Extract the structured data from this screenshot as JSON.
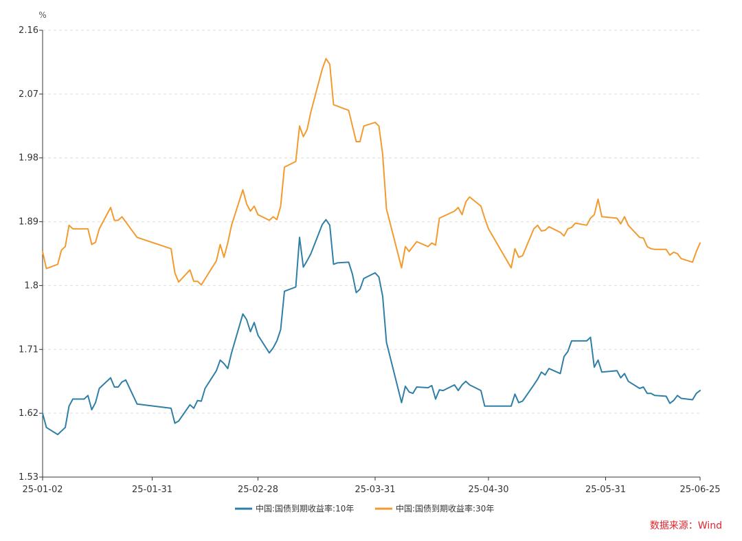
{
  "chart_data": {
    "type": "line",
    "y_unit": "%",
    "ylim": [
      1.53,
      2.16
    ],
    "y_ticks": [
      "1.53",
      "1.62",
      "1.71",
      "1.8",
      "1.89",
      "1.98",
      "2.07",
      "2.16"
    ],
    "x_ticks": [
      "25-01-02",
      "25-01-31",
      "25-02-28",
      "25-03-31",
      "25-04-30",
      "25-05-31",
      "25-06-25"
    ],
    "grid": "horizontal-dashed",
    "legend_position": "bottom-center",
    "series": [
      {
        "name": "中国:国债到期收益率:10年",
        "color": "#2e7ea6",
        "points": [
          [
            "2025-01-02",
            1.62
          ],
          [
            "2025-01-03",
            1.6
          ],
          [
            "2025-01-06",
            1.59
          ],
          [
            "2025-01-08",
            1.6
          ],
          [
            "2025-01-09",
            1.63
          ],
          [
            "2025-01-10",
            1.64
          ],
          [
            "2025-01-13",
            1.64
          ],
          [
            "2025-01-14",
            1.645
          ],
          [
            "2025-01-15",
            1.625
          ],
          [
            "2025-01-16",
            1.635
          ],
          [
            "2025-01-17",
            1.655
          ],
          [
            "2025-01-20",
            1.67
          ],
          [
            "2025-01-21",
            1.657
          ],
          [
            "2025-01-22",
            1.657
          ],
          [
            "2025-01-23",
            1.664
          ],
          [
            "2025-01-24",
            1.667
          ],
          [
            "2025-01-27",
            1.633
          ],
          [
            "2025-02-05",
            1.627
          ],
          [
            "2025-02-06",
            1.606
          ],
          [
            "2025-02-07",
            1.609
          ],
          [
            "2025-02-10",
            1.632
          ],
          [
            "2025-02-11",
            1.627
          ],
          [
            "2025-02-12",
            1.638
          ],
          [
            "2025-02-13",
            1.637
          ],
          [
            "2025-02-14",
            1.655
          ],
          [
            "2025-02-17",
            1.68
          ],
          [
            "2025-02-18",
            1.695
          ],
          [
            "2025-02-19",
            1.69
          ],
          [
            "2025-02-20",
            1.683
          ],
          [
            "2025-02-21",
            1.705
          ],
          [
            "2025-02-24",
            1.76
          ],
          [
            "2025-02-25",
            1.752
          ],
          [
            "2025-02-26",
            1.735
          ],
          [
            "2025-02-27",
            1.748
          ],
          [
            "2025-02-28",
            1.73
          ],
          [
            "2025-03-03",
            1.705
          ],
          [
            "2025-03-04",
            1.712
          ],
          [
            "2025-03-05",
            1.722
          ],
          [
            "2025-03-06",
            1.738
          ],
          [
            "2025-03-07",
            1.792
          ],
          [
            "2025-03-10",
            1.798
          ],
          [
            "2025-03-11",
            1.868
          ],
          [
            "2025-03-12",
            1.826
          ],
          [
            "2025-03-13",
            1.835
          ],
          [
            "2025-03-14",
            1.845
          ],
          [
            "2025-03-17",
            1.886
          ],
          [
            "2025-03-18",
            1.893
          ],
          [
            "2025-03-19",
            1.885
          ],
          [
            "2025-03-20",
            1.83
          ],
          [
            "2025-03-21",
            1.832
          ],
          [
            "2025-03-24",
            1.833
          ],
          [
            "2025-03-25",
            1.816
          ],
          [
            "2025-03-26",
            1.79
          ],
          [
            "2025-03-27",
            1.795
          ],
          [
            "2025-03-28",
            1.81
          ],
          [
            "2025-03-31",
            1.818
          ],
          [
            "2025-04-01",
            1.812
          ],
          [
            "2025-04-02",
            1.785
          ],
          [
            "2025-04-03",
            1.72
          ],
          [
            "2025-04-07",
            1.635
          ],
          [
            "2025-04-08",
            1.658
          ],
          [
            "2025-04-09",
            1.65
          ],
          [
            "2025-04-10",
            1.648
          ],
          [
            "2025-04-11",
            1.657
          ],
          [
            "2025-04-14",
            1.656
          ],
          [
            "2025-04-15",
            1.659
          ],
          [
            "2025-04-16",
            1.64
          ],
          [
            "2025-04-17",
            1.653
          ],
          [
            "2025-04-18",
            1.652
          ],
          [
            "2025-04-21",
            1.66
          ],
          [
            "2025-04-22",
            1.652
          ],
          [
            "2025-04-23",
            1.66
          ],
          [
            "2025-04-24",
            1.665
          ],
          [
            "2025-04-25",
            1.66
          ],
          [
            "2025-04-28",
            1.652
          ],
          [
            "2025-04-29",
            1.63
          ],
          [
            "2025-05-06",
            1.63
          ],
          [
            "2025-05-07",
            1.647
          ],
          [
            "2025-05-08",
            1.635
          ],
          [
            "2025-05-09",
            1.637
          ],
          [
            "2025-05-12",
            1.66
          ],
          [
            "2025-05-13",
            1.668
          ],
          [
            "2025-05-14",
            1.678
          ],
          [
            "2025-05-15",
            1.674
          ],
          [
            "2025-05-16",
            1.683
          ],
          [
            "2025-05-19",
            1.676
          ],
          [
            "2025-05-20",
            1.7
          ],
          [
            "2025-05-21",
            1.707
          ],
          [
            "2025-05-22",
            1.722
          ],
          [
            "2025-05-23",
            1.722
          ],
          [
            "2025-05-26",
            1.722
          ],
          [
            "2025-05-27",
            1.727
          ],
          [
            "2025-05-28",
            1.685
          ],
          [
            "2025-05-29",
            1.695
          ],
          [
            "2025-05-30",
            1.678
          ],
          [
            "2025-06-03",
            1.68
          ],
          [
            "2025-06-04",
            1.67
          ],
          [
            "2025-06-05",
            1.676
          ],
          [
            "2025-06-06",
            1.665
          ],
          [
            "2025-06-09",
            1.655
          ],
          [
            "2025-06-10",
            1.657
          ],
          [
            "2025-06-11",
            1.648
          ],
          [
            "2025-06-12",
            1.648
          ],
          [
            "2025-06-13",
            1.645
          ],
          [
            "2025-06-16",
            1.644
          ],
          [
            "2025-06-17",
            1.634
          ],
          [
            "2025-06-18",
            1.638
          ],
          [
            "2025-06-19",
            1.645
          ],
          [
            "2025-06-20",
            1.641
          ],
          [
            "2025-06-23",
            1.639
          ],
          [
            "2025-06-24",
            1.648
          ],
          [
            "2025-06-25",
            1.652
          ]
        ]
      },
      {
        "name": "中国:国债到期收益率:30年",
        "color": "#f39a2e",
        "points": [
          [
            "2025-01-02",
            1.848
          ],
          [
            "2025-01-03",
            1.824
          ],
          [
            "2025-01-06",
            1.83
          ],
          [
            "2025-01-07",
            1.85
          ],
          [
            "2025-01-08",
            1.855
          ],
          [
            "2025-01-09",
            1.885
          ],
          [
            "2025-01-10",
            1.88
          ],
          [
            "2025-01-13",
            1.88
          ],
          [
            "2025-01-14",
            1.88
          ],
          [
            "2025-01-15",
            1.858
          ],
          [
            "2025-01-16",
            1.861
          ],
          [
            "2025-01-17",
            1.88
          ],
          [
            "2025-01-20",
            1.91
          ],
          [
            "2025-01-21",
            1.892
          ],
          [
            "2025-01-22",
            1.892
          ],
          [
            "2025-01-23",
            1.897
          ],
          [
            "2025-01-27",
            1.868
          ],
          [
            "2025-02-05",
            1.852
          ],
          [
            "2025-02-06",
            1.818
          ],
          [
            "2025-02-07",
            1.805
          ],
          [
            "2025-02-10",
            1.822
          ],
          [
            "2025-02-11",
            1.806
          ],
          [
            "2025-02-12",
            1.806
          ],
          [
            "2025-02-13",
            1.801
          ],
          [
            "2025-02-17",
            1.835
          ],
          [
            "2025-02-18",
            1.858
          ],
          [
            "2025-02-19",
            1.84
          ],
          [
            "2025-02-20",
            1.86
          ],
          [
            "2025-02-21",
            1.885
          ],
          [
            "2025-02-24",
            1.935
          ],
          [
            "2025-02-25",
            1.915
          ],
          [
            "2025-02-26",
            1.905
          ],
          [
            "2025-02-27",
            1.912
          ],
          [
            "2025-02-28",
            1.9
          ],
          [
            "2025-03-03",
            1.892
          ],
          [
            "2025-03-04",
            1.897
          ],
          [
            "2025-03-05",
            1.893
          ],
          [
            "2025-03-06",
            1.912
          ],
          [
            "2025-03-07",
            1.967
          ],
          [
            "2025-03-10",
            1.975
          ],
          [
            "2025-03-11",
            2.025
          ],
          [
            "2025-03-12",
            2.01
          ],
          [
            "2025-03-13",
            2.02
          ],
          [
            "2025-03-14",
            2.045
          ],
          [
            "2025-03-17",
            2.105
          ],
          [
            "2025-03-18",
            2.12
          ],
          [
            "2025-03-19",
            2.112
          ],
          [
            "2025-03-20",
            2.055
          ],
          [
            "2025-03-24",
            2.047
          ],
          [
            "2025-03-25",
            2.025
          ],
          [
            "2025-03-26",
            2.003
          ],
          [
            "2025-03-27",
            2.003
          ],
          [
            "2025-03-28",
            2.025
          ],
          [
            "2025-03-31",
            2.03
          ],
          [
            "2025-04-01",
            2.025
          ],
          [
            "2025-04-02",
            1.985
          ],
          [
            "2025-04-03",
            1.908
          ],
          [
            "2025-04-07",
            1.825
          ],
          [
            "2025-04-08",
            1.855
          ],
          [
            "2025-04-09",
            1.848
          ],
          [
            "2025-04-10",
            1.855
          ],
          [
            "2025-04-11",
            1.862
          ],
          [
            "2025-04-14",
            1.855
          ],
          [
            "2025-04-15",
            1.86
          ],
          [
            "2025-04-16",
            1.857
          ],
          [
            "2025-04-17",
            1.895
          ],
          [
            "2025-04-21",
            1.905
          ],
          [
            "2025-04-22",
            1.91
          ],
          [
            "2025-04-23",
            1.9
          ],
          [
            "2025-04-24",
            1.918
          ],
          [
            "2025-04-25",
            1.925
          ],
          [
            "2025-04-28",
            1.912
          ],
          [
            "2025-04-29",
            1.895
          ],
          [
            "2025-04-30",
            1.88
          ],
          [
            "2025-05-06",
            1.825
          ],
          [
            "2025-05-07",
            1.852
          ],
          [
            "2025-05-08",
            1.84
          ],
          [
            "2025-05-09",
            1.842
          ],
          [
            "2025-05-12",
            1.88
          ],
          [
            "2025-05-13",
            1.885
          ],
          [
            "2025-05-14",
            1.877
          ],
          [
            "2025-05-15",
            1.878
          ],
          [
            "2025-05-16",
            1.883
          ],
          [
            "2025-05-19",
            1.875
          ],
          [
            "2025-05-20",
            1.87
          ],
          [
            "2025-05-21",
            1.88
          ],
          [
            "2025-05-22",
            1.882
          ],
          [
            "2025-05-23",
            1.888
          ],
          [
            "2025-05-26",
            1.885
          ],
          [
            "2025-05-27",
            1.895
          ],
          [
            "2025-05-28",
            1.9
          ],
          [
            "2025-05-29",
            1.922
          ],
          [
            "2025-05-30",
            1.897
          ],
          [
            "2025-06-03",
            1.895
          ],
          [
            "2025-06-04",
            1.887
          ],
          [
            "2025-06-05",
            1.897
          ],
          [
            "2025-06-06",
            1.885
          ],
          [
            "2025-06-09",
            1.868
          ],
          [
            "2025-06-10",
            1.867
          ],
          [
            "2025-06-11",
            1.855
          ],
          [
            "2025-06-12",
            1.852
          ],
          [
            "2025-06-13",
            1.851
          ],
          [
            "2025-06-16",
            1.851
          ],
          [
            "2025-06-17",
            1.843
          ],
          [
            "2025-06-18",
            1.847
          ],
          [
            "2025-06-19",
            1.845
          ],
          [
            "2025-06-20",
            1.838
          ],
          [
            "2025-06-23",
            1.833
          ],
          [
            "2025-06-24",
            1.848
          ],
          [
            "2025-06-25",
            1.86
          ]
        ]
      }
    ],
    "source": "数据来源：Wind"
  }
}
